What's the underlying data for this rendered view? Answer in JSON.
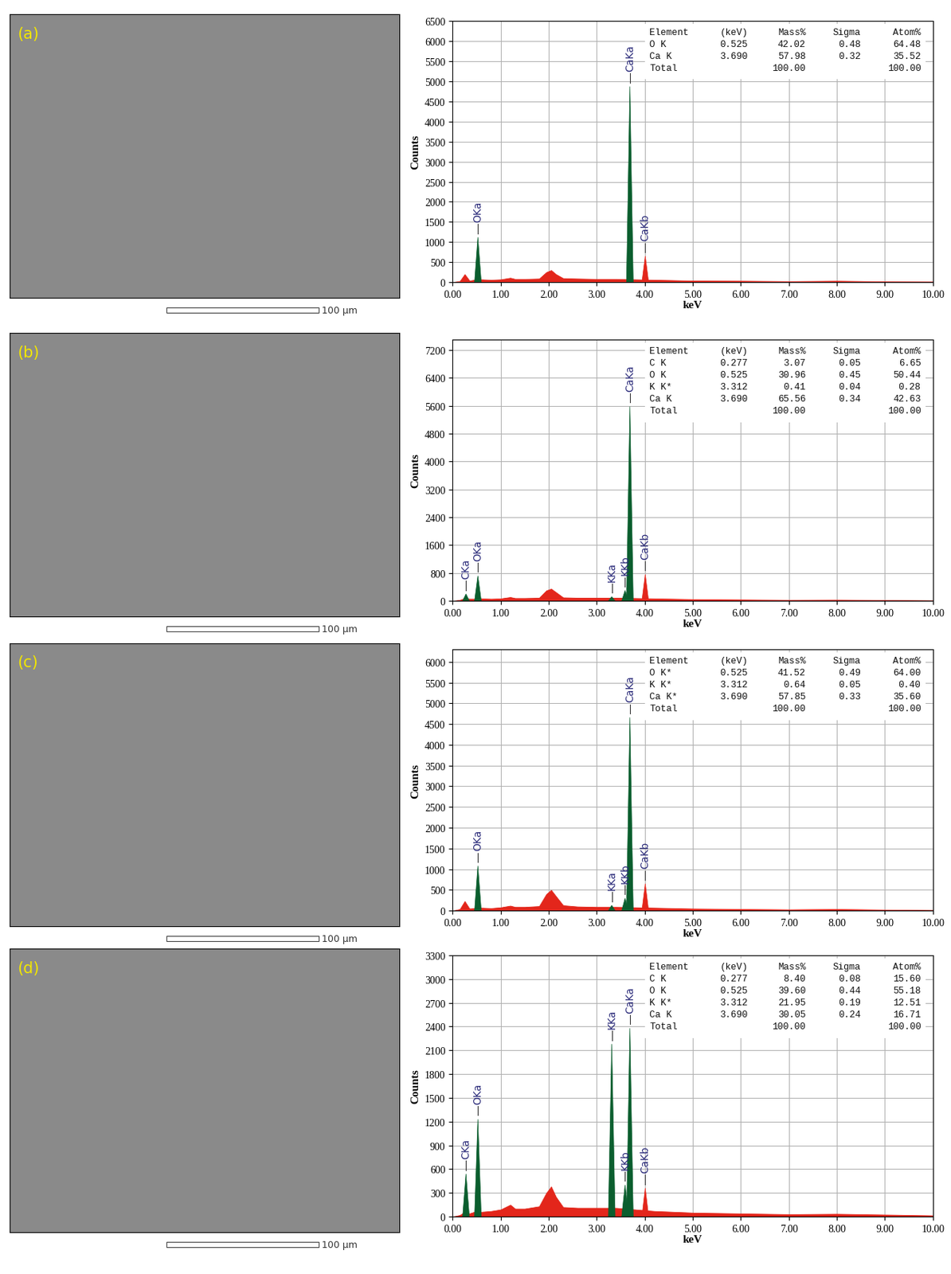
{
  "images": [
    {
      "label": "(a)",
      "scale_bar": "100 μm"
    },
    {
      "label": "(b)",
      "scale_bar": "100 μm"
    },
    {
      "label": "(c)",
      "scale_bar": "100 μm"
    },
    {
      "label": "(d)",
      "scale_bar": "100 μm"
    }
  ],
  "chart_data": [
    {
      "type": "area",
      "xlabel": "keV",
      "ylabel": "Counts",
      "grid": true,
      "color": "#e3261b",
      "x": [
        0.0,
        0.15,
        0.25,
        0.35,
        0.45,
        0.6,
        0.8,
        1.0,
        1.2,
        1.3,
        1.5,
        1.8,
        1.95,
        2.05,
        2.15,
        2.3,
        2.6,
        3.0,
        3.4,
        3.8,
        4.2,
        4.6,
        5.0,
        6.0,
        7.0,
        8.0,
        9.0,
        10.0
      ],
      "values": [
        0,
        30,
        200,
        40,
        60,
        70,
        60,
        70,
        110,
        80,
        80,
        90,
        250,
        300,
        200,
        100,
        90,
        80,
        80,
        70,
        60,
        50,
        40,
        35,
        25,
        35,
        20,
        15
      ],
      "xlim": [
        0,
        10
      ],
      "xticks": [
        {
          "value": 0,
          "label": "0.00"
        },
        {
          "value": 1,
          "label": "1.00"
        },
        {
          "value": 2,
          "label": "2.00"
        },
        {
          "value": 3,
          "label": "3.00"
        },
        {
          "value": 4,
          "label": "4.00"
        },
        {
          "value": 5,
          "label": "5.00"
        },
        {
          "value": 6,
          "label": "6.00"
        },
        {
          "value": 7,
          "label": "7.00"
        },
        {
          "value": 8,
          "label": "8.00"
        },
        {
          "value": 9,
          "label": "9.00"
        },
        {
          "value": 10,
          "label": "10.00"
        }
      ],
      "ylim": [
        0,
        6500
      ],
      "yticks": [
        0,
        500,
        1000,
        1500,
        2000,
        2500,
        3000,
        3500,
        4000,
        4500,
        5000,
        5500,
        6000,
        6500
      ],
      "peaks": [
        {
          "label": "OKa",
          "x": 0.525,
          "value": 1120,
          "color": "#0b5e2e"
        },
        {
          "label": "CaKa",
          "x": 3.69,
          "value": 4870,
          "color": "#0b5e2e"
        },
        {
          "label": "CaKb",
          "x": 4.01,
          "value": 650,
          "color": "#e3261b"
        }
      ],
      "table": {
        "columns": [
          "Element",
          "(keV)",
          "Mass%",
          "Sigma",
          "Atom%"
        ],
        "rows": [
          [
            "O K",
            "0.525",
            "42.02",
            "0.48",
            "64.48"
          ],
          [
            "Ca K",
            "3.690",
            "57.98",
            "0.32",
            "35.52"
          ],
          [
            "Total",
            null,
            "100.00",
            null,
            "100.00"
          ]
        ]
      }
    },
    {
      "type": "area",
      "xlabel": "keV",
      "ylabel": "Counts",
      "grid": true,
      "color": "#e3261b",
      "x": [
        0.0,
        0.15,
        0.25,
        0.35,
        0.45,
        0.6,
        0.8,
        1.0,
        1.2,
        1.3,
        1.5,
        1.8,
        1.95,
        2.05,
        2.15,
        2.3,
        2.6,
        3.0,
        3.4,
        3.8,
        4.2,
        4.6,
        5.0,
        6.0,
        7.0,
        8.0,
        9.0,
        10.0
      ],
      "values": [
        0,
        30,
        80,
        60,
        60,
        70,
        60,
        70,
        110,
        80,
        80,
        90,
        300,
        350,
        250,
        100,
        90,
        90,
        90,
        80,
        70,
        60,
        50,
        40,
        30,
        35,
        25,
        15
      ],
      "xlim": [
        0,
        10
      ],
      "xticks": [
        {
          "value": 0,
          "label": "0.00"
        },
        {
          "value": 1,
          "label": "1.00"
        },
        {
          "value": 2,
          "label": "2.00"
        },
        {
          "value": 3,
          "label": "3.00"
        },
        {
          "value": 4,
          "label": "4.00"
        },
        {
          "value": 5,
          "label": "5.00"
        },
        {
          "value": 6,
          "label": "6.00"
        },
        {
          "value": 7,
          "label": "7.00"
        },
        {
          "value": 8,
          "label": "8.00"
        },
        {
          "value": 9,
          "label": "9.00"
        },
        {
          "value": 10,
          "label": "10.00"
        }
      ],
      "ylim": [
        0,
        7500
      ],
      "yticks": [
        0,
        800,
        1600,
        2400,
        3200,
        4000,
        4800,
        5600,
        6400,
        7200
      ],
      "peaks": [
        {
          "label": "CKa",
          "x": 0.277,
          "value": 200,
          "color": "#0b5e2e"
        },
        {
          "label": "OKa",
          "x": 0.525,
          "value": 720,
          "color": "#0b5e2e"
        },
        {
          "label": "KKa",
          "x": 3.312,
          "value": 120,
          "color": "#0b5e2e"
        },
        {
          "label": "KKb",
          "x": 3.59,
          "value": 300,
          "color": "#0b5e2e"
        },
        {
          "label": "CaKa",
          "x": 3.69,
          "value": 5580,
          "color": "#0b5e2e"
        },
        {
          "label": "CaKb",
          "x": 4.01,
          "value": 760,
          "color": "#e3261b"
        }
      ],
      "table": {
        "columns": [
          "Element",
          "(keV)",
          "Mass%",
          "Sigma",
          "Atom%"
        ],
        "rows": [
          [
            "C K",
            "0.277",
            "3.07",
            "0.05",
            "6.65"
          ],
          [
            "O K",
            "0.525",
            "30.96",
            "0.45",
            "50.44"
          ],
          [
            "K K*",
            "3.312",
            "0.41",
            "0.04",
            "0.28"
          ],
          [
            "Ca K",
            "3.690",
            "65.56",
            "0.34",
            "42.63"
          ],
          [
            "Total",
            null,
            "100.00",
            null,
            "100.00"
          ]
        ]
      }
    },
    {
      "type": "area",
      "xlabel": "keV",
      "ylabel": "Counts",
      "grid": true,
      "color": "#e3261b",
      "x": [
        0.0,
        0.15,
        0.25,
        0.35,
        0.45,
        0.6,
        0.8,
        1.0,
        1.2,
        1.3,
        1.5,
        1.8,
        1.95,
        2.05,
        2.15,
        2.3,
        2.6,
        3.0,
        3.4,
        3.8,
        4.2,
        4.6,
        5.0,
        6.0,
        7.0,
        8.0,
        9.0,
        10.0
      ],
      "values": [
        0,
        40,
        230,
        50,
        60,
        70,
        60,
        80,
        120,
        90,
        90,
        110,
        400,
        500,
        350,
        130,
        100,
        90,
        90,
        80,
        70,
        60,
        50,
        40,
        30,
        40,
        25,
        15
      ],
      "xlim": [
        0,
        10
      ],
      "xticks": [
        {
          "value": 0,
          "label": "0.00"
        },
        {
          "value": 1,
          "label": "1.00"
        },
        {
          "value": 2,
          "label": "2.00"
        },
        {
          "value": 3,
          "label": "3.00"
        },
        {
          "value": 4,
          "label": "4.00"
        },
        {
          "value": 5,
          "label": "5.00"
        },
        {
          "value": 6,
          "label": "6.00"
        },
        {
          "value": 7,
          "label": "7.00"
        },
        {
          "value": 8,
          "label": "8.00"
        },
        {
          "value": 9,
          "label": "9.00"
        },
        {
          "value": 10,
          "label": "10.00"
        }
      ],
      "ylim": [
        0,
        6300
      ],
      "yticks": [
        0,
        500,
        1000,
        1500,
        2000,
        2500,
        3000,
        3500,
        4000,
        4500,
        5000,
        5500,
        6000
      ],
      "peaks": [
        {
          "label": "OKa",
          "x": 0.525,
          "value": 1080,
          "color": "#0b5e2e"
        },
        {
          "label": "KKa",
          "x": 3.312,
          "value": 130,
          "color": "#0b5e2e"
        },
        {
          "label": "KKb",
          "x": 3.59,
          "value": 300,
          "color": "#0b5e2e"
        },
        {
          "label": "CaKa",
          "x": 3.69,
          "value": 4660,
          "color": "#0b5e2e"
        },
        {
          "label": "CaKb",
          "x": 4.01,
          "value": 650,
          "color": "#e3261b"
        }
      ],
      "table": {
        "columns": [
          "Element",
          "(keV)",
          "Mass%",
          "Sigma",
          "Atom%"
        ],
        "rows": [
          [
            "O K*",
            "0.525",
            "41.52",
            "0.49",
            "64.00"
          ],
          [
            "K K*",
            "3.312",
            "0.64",
            "0.05",
            "0.40"
          ],
          [
            "Ca K*",
            "3.690",
            "57.85",
            "0.33",
            "35.60"
          ],
          [
            "Total",
            null,
            "100.00",
            null,
            "100.00"
          ]
        ]
      }
    },
    {
      "type": "area",
      "xlabel": "keV",
      "ylabel": "Counts",
      "grid": true,
      "color": "#e3261b",
      "x": [
        0.0,
        0.15,
        0.25,
        0.35,
        0.45,
        0.6,
        0.8,
        1.0,
        1.2,
        1.3,
        1.5,
        1.8,
        1.95,
        2.05,
        2.15,
        2.3,
        2.6,
        3.0,
        3.4,
        3.8,
        4.2,
        4.6,
        5.0,
        6.0,
        7.0,
        8.0,
        9.0,
        10.0
      ],
      "values": [
        0,
        20,
        60,
        40,
        60,
        60,
        70,
        90,
        150,
        100,
        100,
        130,
        300,
        380,
        250,
        120,
        110,
        110,
        110,
        90,
        70,
        60,
        50,
        40,
        30,
        35,
        25,
        15
      ],
      "xlim": [
        0,
        10
      ],
      "xticks": [
        {
          "value": 0,
          "label": "0.00"
        },
        {
          "value": 1,
          "label": "1.00"
        },
        {
          "value": 2,
          "label": "2.00"
        },
        {
          "value": 3,
          "label": "3.00"
        },
        {
          "value": 4,
          "label": "4.00"
        },
        {
          "value": 5,
          "label": "5.00"
        },
        {
          "value": 6,
          "label": "6.00"
        },
        {
          "value": 7,
          "label": "7.00"
        },
        {
          "value": 8,
          "label": "8.00"
        },
        {
          "value": 9,
          "label": "9.00"
        },
        {
          "value": 10,
          "label": "10.00"
        }
      ],
      "ylim": [
        0,
        3300
      ],
      "yticks": [
        0,
        300,
        600,
        900,
        1200,
        1500,
        1800,
        2100,
        2400,
        2700,
        3000,
        3300
      ],
      "peaks": [
        {
          "label": "CKa",
          "x": 0.277,
          "value": 540,
          "color": "#0b5e2e"
        },
        {
          "label": "OKa",
          "x": 0.525,
          "value": 1230,
          "color": "#0b5e2e"
        },
        {
          "label": "KKa",
          "x": 3.312,
          "value": 2180,
          "color": "#0b5e2e"
        },
        {
          "label": "KKb",
          "x": 3.59,
          "value": 400,
          "color": "#0b5e2e"
        },
        {
          "label": "CaKa",
          "x": 3.69,
          "value": 2380,
          "color": "#0b5e2e"
        },
        {
          "label": "CaKb",
          "x": 4.01,
          "value": 360,
          "color": "#e3261b"
        }
      ],
      "table": {
        "columns": [
          "Element",
          "(keV)",
          "Mass%",
          "Sigma",
          "Atom%"
        ],
        "rows": [
          [
            "C K",
            "0.277",
            "8.40",
            "0.08",
            "15.60"
          ],
          [
            "O K",
            "0.525",
            "39.60",
            "0.44",
            "55.18"
          ],
          [
            "K K*",
            "3.312",
            "21.95",
            "0.19",
            "12.51"
          ],
          [
            "Ca K",
            "3.690",
            "30.05",
            "0.24",
            "16.71"
          ],
          [
            "Total",
            null,
            "100.00",
            null,
            "100.00"
          ]
        ]
      }
    }
  ]
}
